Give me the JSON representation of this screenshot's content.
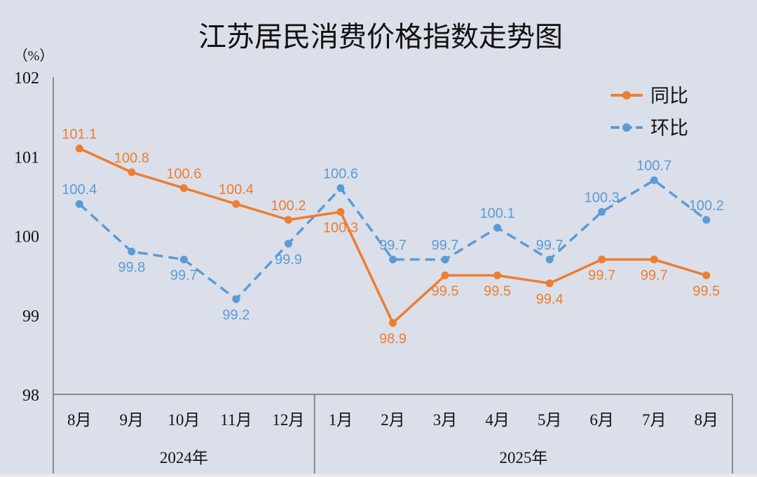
{
  "chart_data": {
    "type": "line",
    "title": "江苏居民消费价格指数走势图",
    "ylabel": "（%）",
    "ylim": [
      98,
      102
    ],
    "yticks": [
      98,
      99,
      100,
      101,
      102
    ],
    "grid": false,
    "legend_position": "top-right",
    "categories": [
      "8月",
      "9月",
      "10月",
      "11月",
      "12月",
      "1月",
      "2月",
      "3月",
      "4月",
      "5月",
      "6月",
      "7月",
      "8月"
    ],
    "groups": [
      {
        "label": "2024年",
        "count": 5
      },
      {
        "label": "2025年",
        "count": 8
      }
    ],
    "series": [
      {
        "name": "同比",
        "color": "#ed7d31",
        "style": "solid",
        "values": [
          101.1,
          100.8,
          100.6,
          100.4,
          100.2,
          100.3,
          98.9,
          99.5,
          99.5,
          99.4,
          99.7,
          99.7,
          99.5
        ],
        "label_side": [
          "above",
          "above",
          "above",
          "above",
          "above",
          "below",
          "below",
          "below",
          "below",
          "below",
          "below",
          "below",
          "below"
        ]
      },
      {
        "name": "环比",
        "color": "#5b9bd5",
        "style": "dashed",
        "values": [
          100.4,
          99.8,
          99.7,
          99.2,
          99.9,
          100.6,
          99.7,
          99.7,
          100.1,
          99.7,
          100.3,
          100.7,
          100.2
        ],
        "label_side": [
          "above",
          "below",
          "below",
          "below",
          "below",
          "above",
          "above",
          "above",
          "above",
          "above",
          "above",
          "above",
          "above"
        ]
      }
    ]
  }
}
